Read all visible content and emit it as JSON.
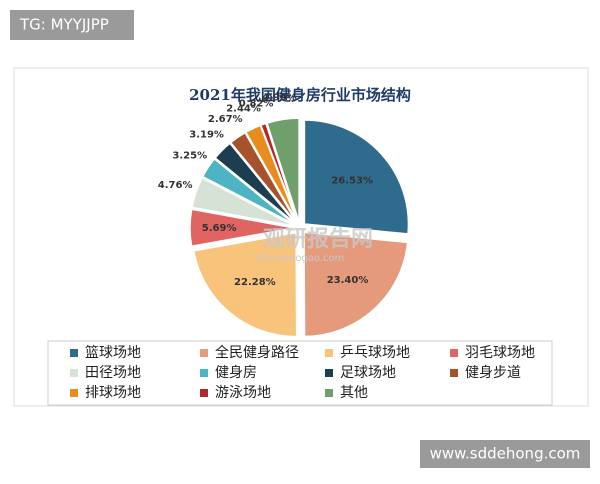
{
  "overlays": {
    "top_left": "TG: MYYJJPP",
    "bottom_right": "www.sddehong.com",
    "watermark": "观研报告网",
    "watermark_url": "chinabaogao.com"
  },
  "chart_data": {
    "type": "pie",
    "title": "2021年我国健身房行业市场结构",
    "categories": [
      "篮球场地",
      "全民健身路径",
      "乒乓球场地",
      "羽毛球场地",
      "田径场地",
      "健身房",
      "足球场地",
      "健身步道",
      "排球场地",
      "游泳场地",
      "其他"
    ],
    "values": [
      26.53,
      23.4,
      22.28,
      5.69,
      4.76,
      3.25,
      3.19,
      2.67,
      2.44,
      0.82,
      4.99
    ],
    "value_labels": [
      "26.53%",
      "23.40%",
      "22.28%",
      "5.69%",
      "4.76%",
      "3.25%",
      "3.19%",
      "2.67%",
      "2.44%",
      "0.82%",
      "4.99%"
    ],
    "colors": [
      "#2e6b8c",
      "#e59a7c",
      "#f8c47c",
      "#e06462",
      "#d6e2d6",
      "#4cb4c2",
      "#1d3e50",
      "#a6522c",
      "#e88d1d",
      "#ad2b2b",
      "#6f9f6b"
    ]
  }
}
